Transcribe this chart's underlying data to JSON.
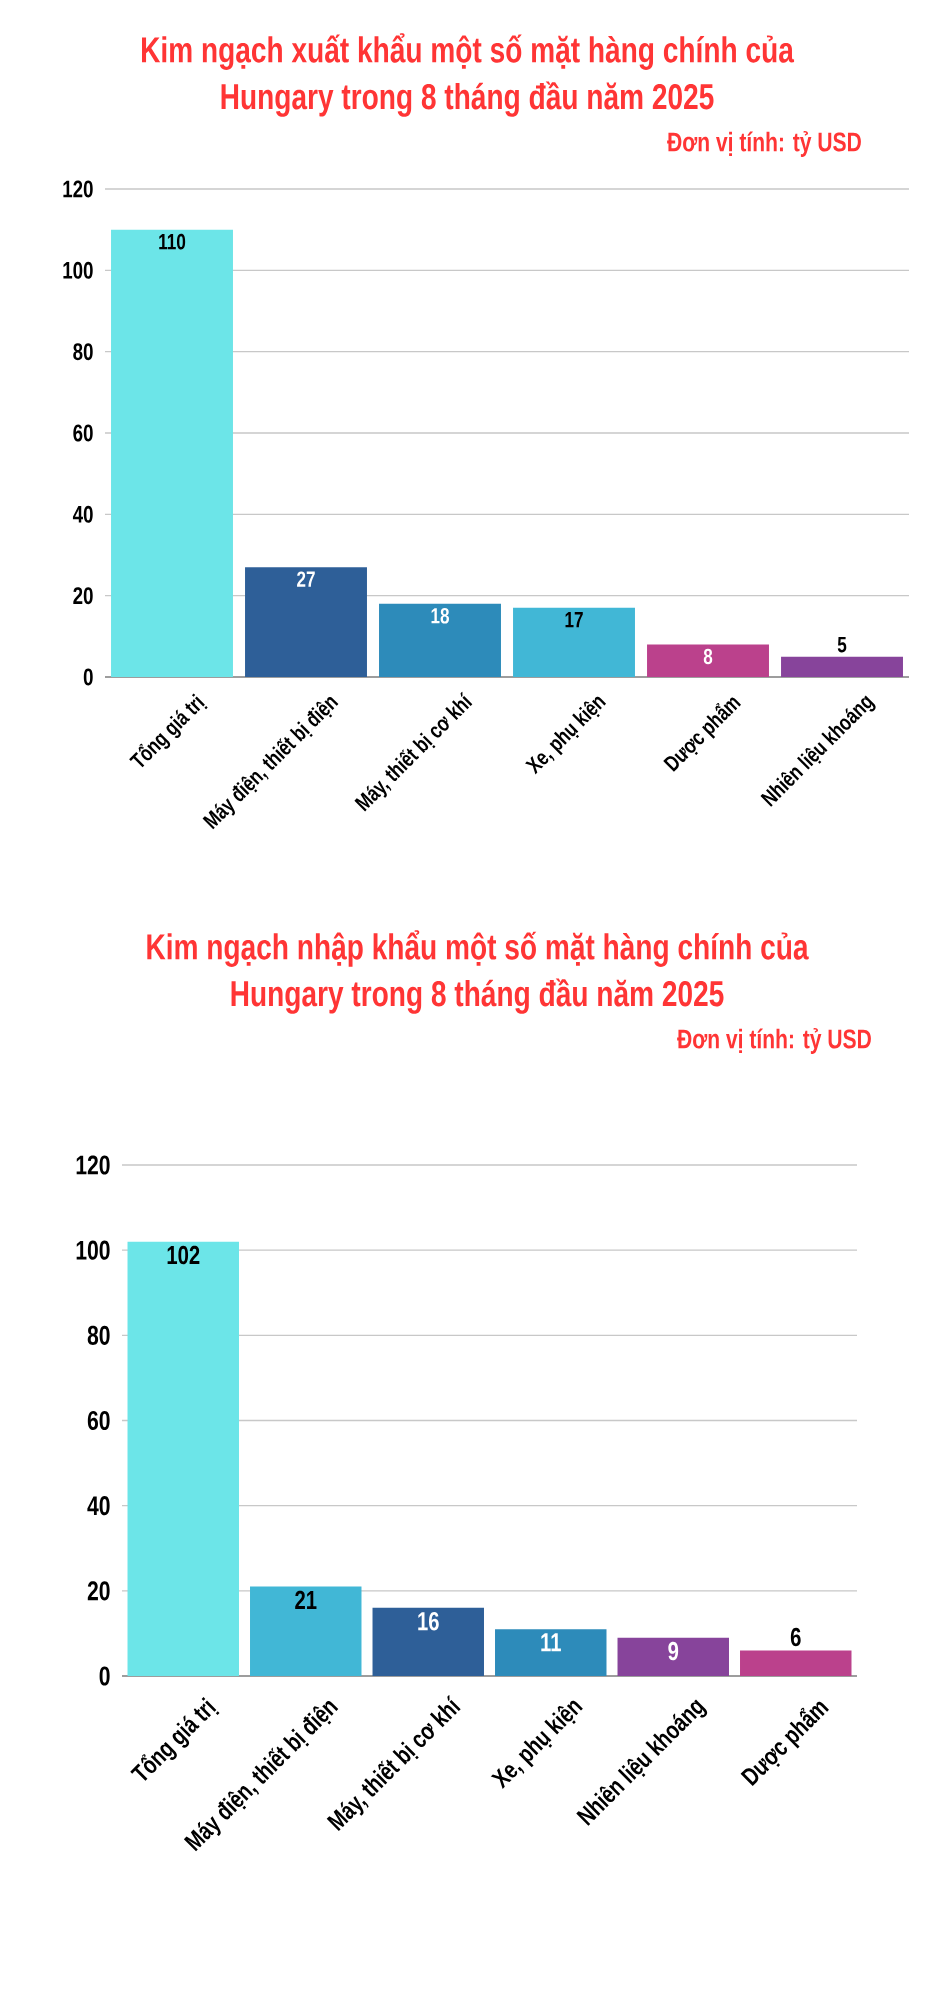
{
  "chart_data": [
    {
      "type": "bar",
      "title": "Kim ngạch xuất khẩu một số mặt hàng chính của Hungary trong 8 tháng đầu năm 2025",
      "subtitle": "Đơn vị tính: tỷ USD",
      "categories": [
        "Tổng giá trị",
        "Máy điện, thiết bị điện",
        "Máy, thiết bị cơ khí",
        "Xe, phụ kiện",
        "Dược phẩm",
        "Nhiên liệu khoáng"
      ],
      "values": [
        110,
        27,
        18,
        17,
        8,
        5
      ],
      "colors": [
        "#6ce5e8",
        "#2e5f98",
        "#2d8bba",
        "#41b7d6",
        "#bb418c",
        "#87449b"
      ],
      "ylim": [
        0,
        120
      ],
      "yticks": [
        0,
        20,
        40,
        60,
        80,
        100,
        120
      ],
      "grid": "y",
      "data_labels": true
    },
    {
      "type": "bar",
      "title": "Kim ngạch nhập khẩu một số mặt hàng chính của Hungary trong 8 tháng đầu năm 2025",
      "subtitle": "Đơn vị tính: tỷ USD",
      "categories": [
        "Tổng giá trị",
        "Máy điện, thiết bị điện",
        "Máy, thiết bị cơ khí",
        "Xe, phụ kiện",
        "Nhiên liệu khoáng",
        "Dược phẩm"
      ],
      "values": [
        102,
        21,
        16,
        11,
        9,
        6
      ],
      "colors": [
        "#6ce5e8",
        "#41b7d6",
        "#2e5f98",
        "#2d8bba",
        "#87449b",
        "#bb418c"
      ],
      "ylim": [
        0,
        120
      ],
      "yticks": [
        0,
        20,
        40,
        60,
        80,
        100,
        120
      ],
      "grid": "y",
      "data_labels": true
    }
  ]
}
